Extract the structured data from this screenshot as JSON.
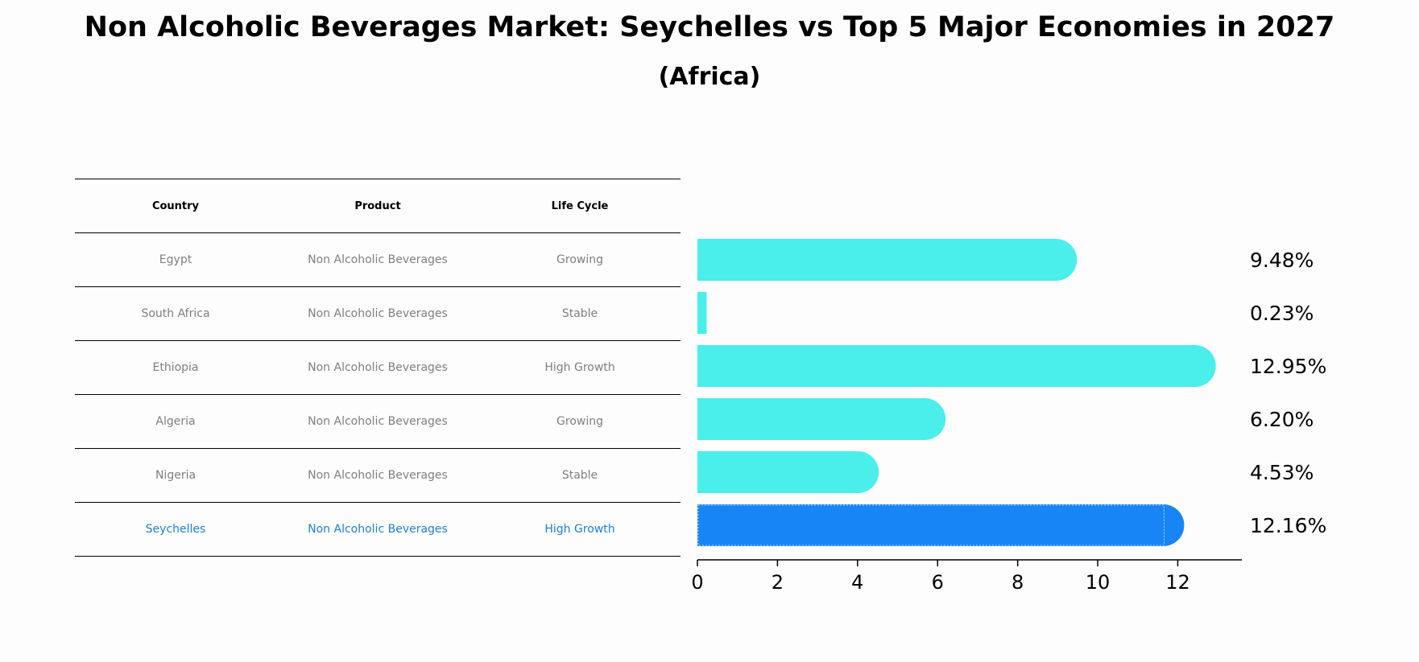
{
  "title": "Non Alcoholic Beverages Market: Seychelles vs Top 5 Major Economies in 2027",
  "subtitle": "(Africa)",
  "table": {
    "headers": [
      "Country",
      "Product",
      "Life Cycle"
    ],
    "rows": [
      {
        "country": "Egypt",
        "product": "Non Alcoholic Beverages",
        "life_cycle": "Growing"
      },
      {
        "country": "South Africa",
        "product": "Non Alcoholic Beverages",
        "life_cycle": "Stable"
      },
      {
        "country": "Ethiopia",
        "product": "Non Alcoholic Beverages",
        "life_cycle": "High Growth"
      },
      {
        "country": "Algeria",
        "product": "Non Alcoholic Beverages",
        "life_cycle": "Growing"
      },
      {
        "country": "Nigeria",
        "product": "Non Alcoholic Beverages",
        "life_cycle": "Stable"
      },
      {
        "country": "Seychelles",
        "product": "Non Alcoholic Beverages",
        "life_cycle": "High Growth"
      }
    ]
  },
  "chart_data": {
    "type": "bar",
    "orientation": "horizontal",
    "categories": [
      "Egypt",
      "South Africa",
      "Ethiopia",
      "Algeria",
      "Nigeria",
      "Seychelles"
    ],
    "values": [
      9.48,
      0.23,
      12.95,
      6.2,
      4.53,
      12.16
    ],
    "value_labels": [
      "9.48%",
      "0.23%",
      "12.95%",
      "6.20%",
      "4.53%",
      "12.16%"
    ],
    "xticks": [
      0,
      2,
      4,
      6,
      8,
      10,
      12
    ],
    "xlim": [
      0,
      13.6
    ],
    "grid": false,
    "colors": {
      "default": "#4aeeea",
      "highlight": "#1785f5",
      "highlight_text": "#1f7fd0",
      "muted_text": "#7f7f7f"
    },
    "highlight_category": "Seychelles"
  }
}
